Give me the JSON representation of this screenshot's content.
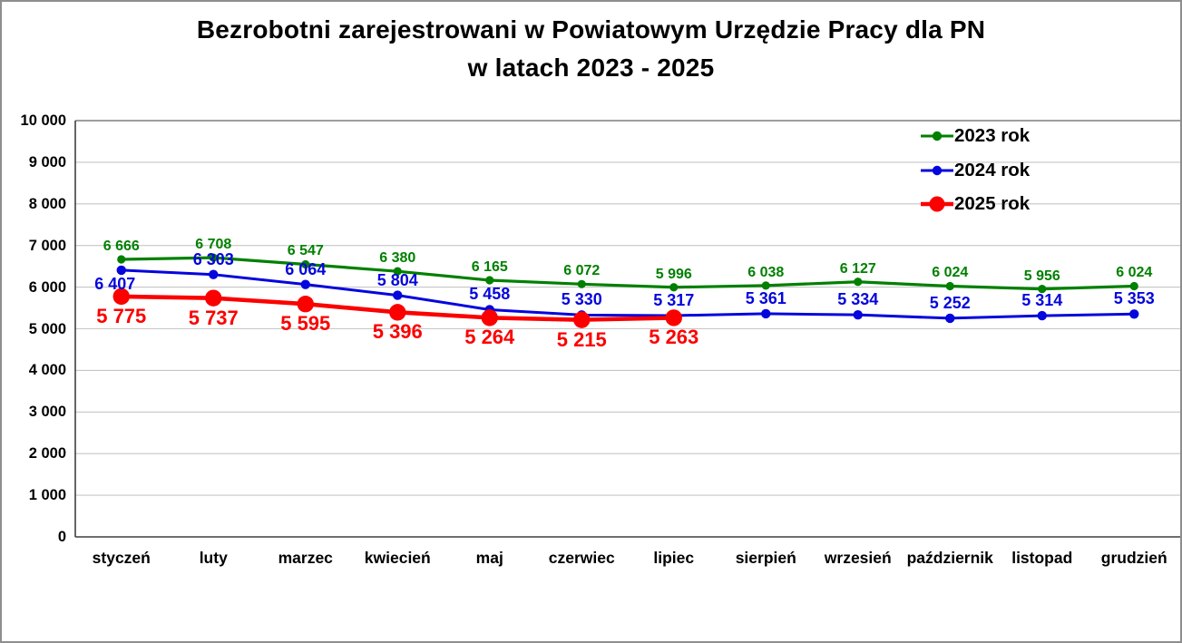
{
  "window": {
    "background": "#ffffff",
    "border_color": "#8e8e8e"
  },
  "title": {
    "line1": "Bezrobotni zarejestrowani w Powiatowym Urzędzie Pracy dla PN",
    "line2": "w latach 2023 - 2025"
  },
  "legend": {
    "position": "top-right",
    "items": [
      {
        "label": "2023 rok",
        "color": "#008000",
        "marker": "small-dot"
      },
      {
        "label": "2024 rok",
        "color": "#0505dd",
        "marker": "small-dot"
      },
      {
        "label": "2025 rok",
        "color": "#fc0000",
        "marker": "large-dot"
      }
    ]
  },
  "chart_data": {
    "type": "line",
    "title": "Bezrobotni zarejestrowani w Powiatowym Urzędzie Pracy dla PN w latach 2023 - 2025",
    "xlabel": "",
    "ylabel": "",
    "grid": "horizontal",
    "legend_position": "top-right",
    "ylim": [
      0,
      10000
    ],
    "ytick_step": 1000,
    "ytick_labels": [
      "0",
      "1 000",
      "2 000",
      "3 000",
      "4 000",
      "5 000",
      "6 000",
      "7 000",
      "8 000",
      "9 000",
      "10 000"
    ],
    "categories": [
      "styczeń",
      "luty",
      "marzec",
      "kwiecień",
      "maj",
      "czerwiec",
      "lipiec",
      "sierpień",
      "wrzesień",
      "październik",
      "listopad",
      "grudzień"
    ],
    "series": [
      {
        "name": "2023 rok",
        "color": "#008000",
        "values": [
          6666,
          6708,
          6547,
          6380,
          6165,
          6072,
          5996,
          6038,
          6127,
          6024,
          5956,
          6024
        ],
        "labels": [
          "6 666",
          "6 708",
          "6 547",
          "6 380",
          "6 165",
          "6 072",
          "5 996",
          "6 038",
          "6 127",
          "6 024",
          "5 956",
          "6 024"
        ],
        "label_position": "above"
      },
      {
        "name": "2024 rok",
        "color": "#0505dd",
        "values": [
          6407,
          6303,
          6064,
          5804,
          5458,
          5330,
          5317,
          5361,
          5334,
          5252,
          5314,
          5353
        ],
        "labels": [
          "6 407",
          "6 303",
          "6 064",
          "5 804",
          "5 458",
          "5 330",
          "5 317",
          "5 361",
          "5 334",
          "5 252",
          "5 314",
          "5 353"
        ],
        "label_position": "above"
      },
      {
        "name": "2025 rok",
        "color": "#fc0000",
        "values": [
          5775,
          5737,
          5595,
          5396,
          5264,
          5215,
          5263
        ],
        "labels": [
          "5 775",
          "5 737",
          "5 595",
          "5 396",
          "5 264",
          "5 215",
          "5 263"
        ],
        "label_position": "below"
      }
    ]
  }
}
